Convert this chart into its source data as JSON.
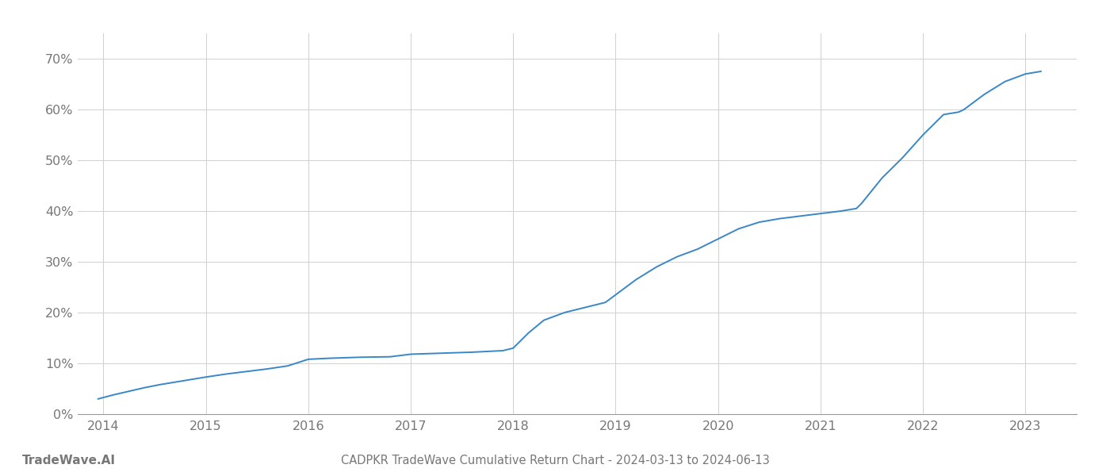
{
  "title": "CADPKR TradeWave Cumulative Return Chart - 2024-03-13 to 2024-06-13",
  "watermark_left": "TradeWave.AI",
  "line_color": "#3a87c8",
  "background_color": "#ffffff",
  "grid_color": "#d0d0d0",
  "x_years": [
    2014,
    2015,
    2016,
    2017,
    2018,
    2019,
    2020,
    2021,
    2022,
    2023
  ],
  "x_data": [
    2013.95,
    2014.1,
    2014.25,
    2014.4,
    2014.55,
    2014.7,
    2014.85,
    2015.0,
    2015.2,
    2015.4,
    2015.6,
    2015.8,
    2016.0,
    2016.2,
    2016.5,
    2016.8,
    2017.0,
    2017.3,
    2017.6,
    2017.9,
    2018.0,
    2018.15,
    2018.3,
    2018.5,
    2018.7,
    2018.9,
    2019.0,
    2019.2,
    2019.4,
    2019.6,
    2019.8,
    2020.0,
    2020.2,
    2020.4,
    2020.6,
    2020.8,
    2021.0,
    2021.2,
    2021.35,
    2021.4,
    2021.6,
    2021.8,
    2022.0,
    2022.2,
    2022.35,
    2022.4,
    2022.6,
    2022.8,
    2023.0,
    2023.15
  ],
  "y_data": [
    3.0,
    3.8,
    4.5,
    5.2,
    5.8,
    6.3,
    6.8,
    7.3,
    7.9,
    8.4,
    8.9,
    9.5,
    10.8,
    11.0,
    11.2,
    11.3,
    11.8,
    12.0,
    12.2,
    12.5,
    13.0,
    16.0,
    18.5,
    20.0,
    21.0,
    22.0,
    23.5,
    26.5,
    29.0,
    31.0,
    32.5,
    34.5,
    36.5,
    37.8,
    38.5,
    39.0,
    39.5,
    40.0,
    40.5,
    41.5,
    46.5,
    50.5,
    55.0,
    59.0,
    59.5,
    60.0,
    63.0,
    65.5,
    67.0,
    67.5
  ],
  "ylim": [
    0,
    75
  ],
  "yticks": [
    0,
    10,
    20,
    30,
    40,
    50,
    60,
    70
  ],
  "xlim": [
    2013.75,
    2023.5
  ],
  "title_fontsize": 10.5,
  "tick_fontsize": 11.5,
  "watermark_fontsize": 11,
  "axis_color": "#999999",
  "label_color": "#777777"
}
